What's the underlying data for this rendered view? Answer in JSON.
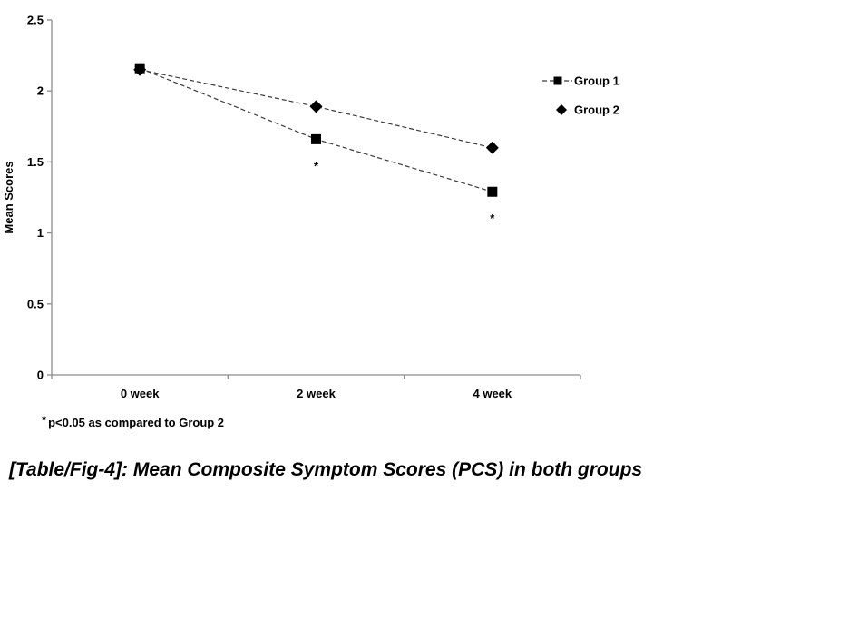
{
  "caption": "[Table/Fig-4]: Mean Composite Symptom Scores (PCS) in both groups",
  "footnote": {
    "star": "*",
    "text": "p<0.05 as compared to Group 2"
  },
  "chart_data": {
    "type": "line",
    "title": "",
    "xlabel": "",
    "ylabel": "Mean Scores",
    "categories": [
      "0 week",
      "2 week",
      "4 week"
    ],
    "series": [
      {
        "name": "Group 1",
        "marker": "square",
        "legend_line": true,
        "values": [
          2.16,
          1.66,
          1.29
        ],
        "significant": [
          false,
          true,
          true
        ]
      },
      {
        "name": "Group 2",
        "marker": "diamond",
        "legend_line": false,
        "values": [
          2.15,
          1.89,
          1.6
        ],
        "significant": [
          false,
          false,
          false
        ]
      }
    ],
    "ylim": [
      0,
      2.5
    ],
    "ytick_step": 0.5,
    "ytick_labels": [
      "0",
      "0.5",
      "1",
      "1.5",
      "2",
      "2.5"
    ],
    "grid": false,
    "line_style": "dashed",
    "legend_position": "right-top",
    "significance_marker": "*",
    "axis_color": "#8c8c8c",
    "line_color": "#3a3a3a",
    "marker_color": "#000000",
    "text_color": "#000000"
  }
}
